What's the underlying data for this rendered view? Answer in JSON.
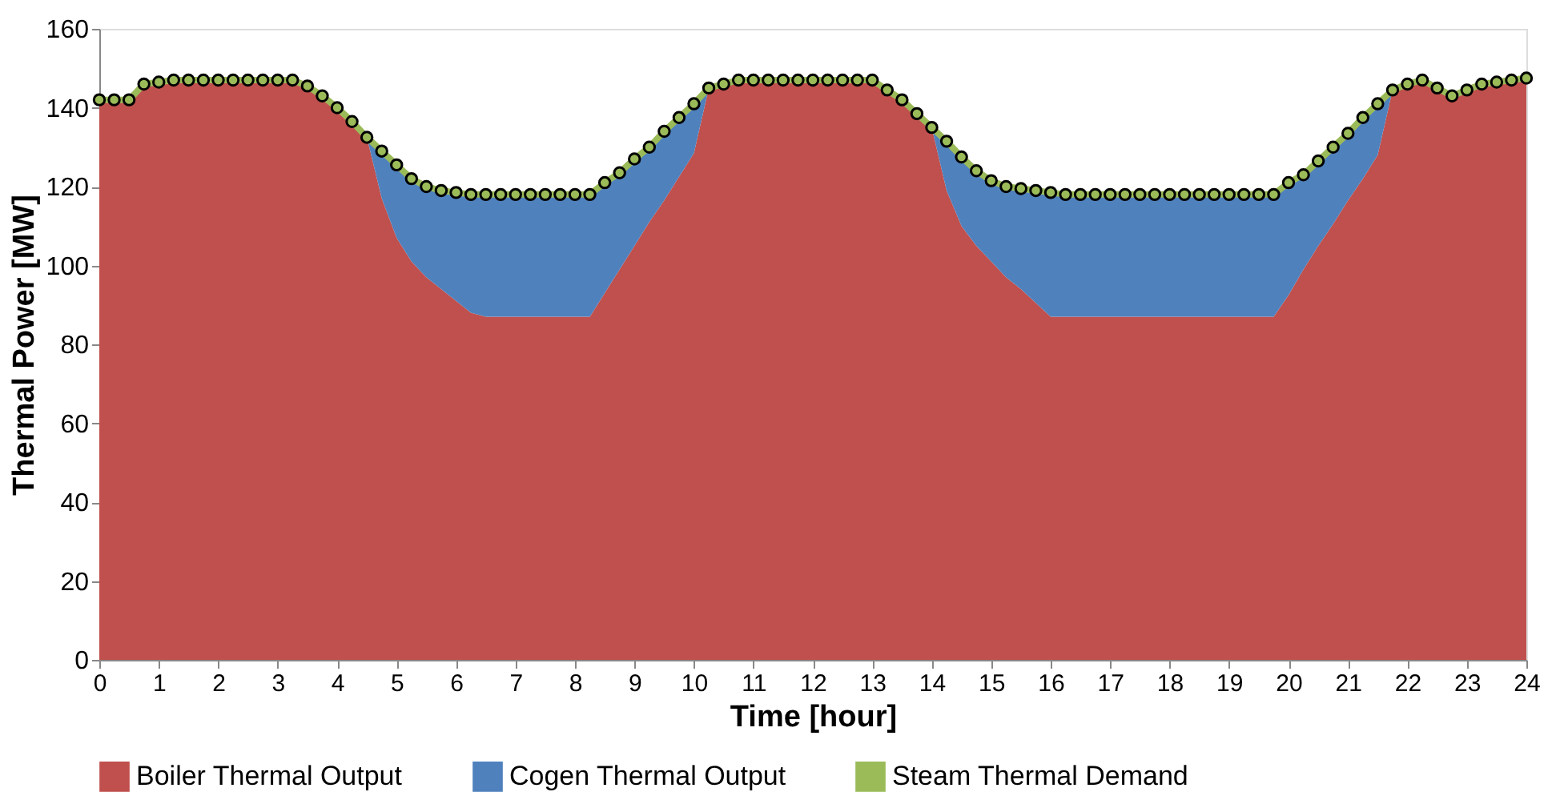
{
  "chart_data": {
    "type": "area",
    "xlabel": "Time [hour]",
    "ylabel": "Thermal Power [MW]",
    "stacked": true,
    "grid": false,
    "legend": "bottom",
    "xlim": [
      0,
      24
    ],
    "xticks": [
      0,
      1,
      2,
      3,
      4,
      5,
      6,
      7,
      8,
      9,
      10,
      11,
      12,
      13,
      14,
      15,
      16,
      17,
      18,
      19,
      20,
      21,
      22,
      23,
      24
    ],
    "ylim": [
      0,
      160
    ],
    "yticks": [
      0,
      20,
      40,
      60,
      80,
      100,
      120,
      140,
      160
    ],
    "x": [
      0,
      0.25,
      0.5,
      0.75,
      1,
      1.25,
      1.5,
      1.75,
      2,
      2.25,
      2.5,
      2.75,
      3,
      3.25,
      3.5,
      3.75,
      4,
      4.25,
      4.5,
      4.75,
      5,
      5.25,
      5.5,
      5.75,
      6,
      6.25,
      6.5,
      6.75,
      7,
      7.25,
      7.5,
      7.75,
      8,
      8.25,
      8.5,
      8.75,
      9,
      9.25,
      9.5,
      9.75,
      10,
      10.25,
      10.5,
      10.75,
      11,
      11.25,
      11.5,
      11.75,
      12,
      12.25,
      12.5,
      12.75,
      13,
      13.25,
      13.5,
      13.75,
      14,
      14.25,
      14.5,
      14.75,
      15,
      15.25,
      15.5,
      15.75,
      16,
      16.25,
      16.5,
      16.75,
      17,
      17.25,
      17.5,
      17.75,
      18,
      18.25,
      18.5,
      18.75,
      19,
      19.25,
      19.5,
      19.75,
      20,
      20.25,
      20.5,
      20.75,
      21,
      21.25,
      21.5,
      21.75,
      22,
      22.25,
      22.5,
      22.75,
      23,
      23.25,
      23.5,
      23.75,
      24
    ],
    "series": [
      {
        "name": "Boiler Thermal Output",
        "type": "area",
        "color": "#c0504d",
        "values": [
          142,
          142,
          142,
          146,
          146.5,
          147,
          147,
          147,
          147,
          147,
          147,
          147,
          147,
          147,
          145.5,
          143,
          140,
          136.5,
          132.5,
          117,
          107,
          101,
          97,
          94,
          91,
          88,
          87,
          87,
          87,
          87,
          87,
          87,
          87,
          87,
          93,
          99,
          105,
          111,
          116.5,
          122.5,
          128.5,
          145,
          146,
          147,
          147,
          147,
          147,
          147,
          147,
          147,
          147,
          147,
          147,
          144.5,
          142,
          138.5,
          135,
          119,
          110,
          105,
          101,
          97,
          94,
          90.5,
          87,
          87,
          87,
          87,
          87,
          87,
          87,
          87,
          87,
          87,
          87,
          87,
          87,
          87,
          87,
          87,
          92.5,
          99,
          105,
          110.5,
          116.5,
          122,
          128,
          144.5,
          146,
          147,
          145,
          143,
          144.5,
          146,
          146.5,
          147,
          147.5
        ]
      },
      {
        "name": "Cogen Thermal Output",
        "type": "area",
        "color": "#4f81bd",
        "values": [
          0,
          0,
          0,
          0,
          0,
          0,
          0,
          0,
          0,
          0,
          0,
          0,
          0,
          0,
          0,
          0,
          0,
          0,
          0,
          12,
          18.5,
          21,
          23,
          25,
          27.5,
          30,
          31,
          31,
          31,
          31,
          31,
          31,
          31,
          31,
          28,
          24.5,
          22,
          19,
          17.5,
          15,
          12.5,
          0,
          0,
          0,
          0,
          0,
          0,
          0,
          0,
          0,
          0,
          0,
          0,
          0,
          0,
          0,
          0,
          12.5,
          17.5,
          19,
          20.5,
          23,
          25.5,
          28.5,
          31.5,
          31,
          31,
          31,
          31,
          31,
          31,
          31,
          31,
          31,
          31,
          31,
          31,
          31,
          31,
          31,
          28.5,
          24,
          21.5,
          19.5,
          17,
          15.5,
          13,
          0,
          0,
          0,
          0,
          0,
          0,
          0,
          0,
          0,
          0
        ]
      },
      {
        "name": "Steam Thermal Demand",
        "type": "line",
        "marker": "circle",
        "color": "#9bbb59",
        "values": [
          142,
          142,
          142,
          146,
          146.5,
          147,
          147,
          147,
          147,
          147,
          147,
          147,
          147,
          147,
          145.5,
          143,
          140,
          136.5,
          132.5,
          129,
          125.5,
          122,
          120,
          119,
          118.5,
          118,
          118,
          118,
          118,
          118,
          118,
          118,
          118,
          118,
          121,
          123.5,
          127,
          130,
          134,
          137.5,
          141,
          145,
          146,
          147,
          147,
          147,
          147,
          147,
          147,
          147,
          147,
          147,
          147,
          144.5,
          142,
          138.5,
          135,
          131.5,
          127.5,
          124,
          121.5,
          120,
          119.5,
          119,
          118.5,
          118,
          118,
          118,
          118,
          118,
          118,
          118,
          118,
          118,
          118,
          118,
          118,
          118,
          118,
          118,
          121,
          123,
          126.5,
          130,
          133.5,
          137.5,
          141,
          144.5,
          146,
          147,
          145,
          143,
          144.5,
          146,
          146.5,
          147,
          147.5
        ]
      }
    ]
  }
}
